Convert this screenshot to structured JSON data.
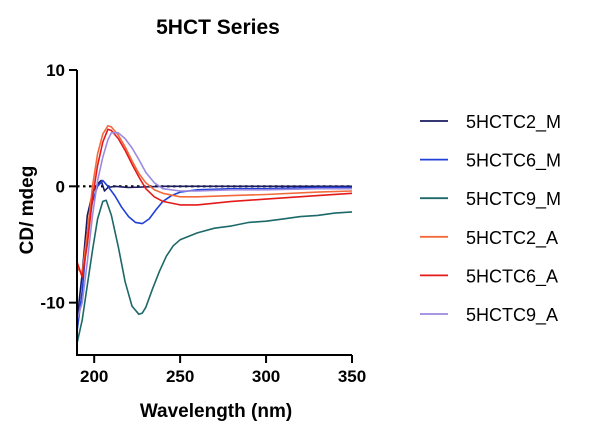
{
  "chart_data": {
    "type": "line",
    "title": "5HCT Series",
    "xlabel": "Wavelength (nm)",
    "ylabel": "CD/ mdeg",
    "xlim": [
      190,
      350
    ],
    "ylim": [
      -14.5,
      10
    ],
    "xticks": [
      200,
      250,
      300,
      350
    ],
    "yticks": [
      10,
      0,
      -10
    ],
    "zero_line": "dotted",
    "grid": false,
    "legend_position": "right",
    "series": [
      {
        "name": "5HCTC2_M",
        "color": "#1a1a5e",
        "x": [
          190,
          193,
          196,
          199,
          202,
          204,
          206,
          208,
          212,
          220,
          240,
          270,
          300,
          330,
          350
        ],
        "y": [
          -11.5,
          -7.5,
          -2.5,
          -0.6,
          0.2,
          0.5,
          -0.4,
          -0.1,
          0.0,
          -0.1,
          0.0,
          0.0,
          0.0,
          0.0,
          0.0
        ]
      },
      {
        "name": "5HCTC6_M",
        "color": "#2040d8",
        "x": [
          190,
          193,
          196,
          199,
          202,
          205,
          208,
          212,
          216,
          220,
          224,
          228,
          232,
          236,
          240,
          245,
          250,
          260,
          280,
          300,
          330,
          350
        ],
        "y": [
          -12.5,
          -9,
          -4,
          -1.3,
          0.0,
          0.5,
          0.0,
          -0.8,
          -1.8,
          -2.6,
          -3.1,
          -3.2,
          -2.8,
          -2.0,
          -1.3,
          -0.8,
          -0.5,
          -0.3,
          -0.2,
          -0.2,
          -0.1,
          -0.1
        ]
      },
      {
        "name": "5HCTC9_M",
        "color": "#1d6868",
        "x": [
          190,
          193,
          196,
          199,
          202,
          205,
          207,
          210,
          214,
          218,
          222,
          226,
          228,
          230,
          234,
          238,
          242,
          246,
          250,
          260,
          270,
          280,
          290,
          300,
          310,
          320,
          330,
          340,
          350
        ],
        "y": [
          -13.5,
          -11.5,
          -8.5,
          -5.5,
          -2.8,
          -1.3,
          -1.2,
          -2.5,
          -5.2,
          -8.2,
          -10.3,
          -11.0,
          -10.9,
          -10.4,
          -8.8,
          -7.3,
          -6.0,
          -5.1,
          -4.6,
          -4.0,
          -3.6,
          -3.4,
          -3.1,
          -3.0,
          -2.8,
          -2.6,
          -2.5,
          -2.3,
          -2.2
        ]
      },
      {
        "name": "5HCTC2_A",
        "color": "#f26a3c",
        "x": [
          190,
          193,
          196,
          199,
          202,
          205,
          208,
          210,
          214,
          218,
          222,
          226,
          230,
          235,
          240,
          250,
          260,
          280,
          300,
          330,
          350
        ],
        "y": [
          -7,
          -7.5,
          -4,
          0,
          2.8,
          4.5,
          5.2,
          5.1,
          4.4,
          3.4,
          2.2,
          1.1,
          0.3,
          -0.3,
          -0.6,
          -0.9,
          -0.9,
          -0.8,
          -0.7,
          -0.5,
          -0.4
        ]
      },
      {
        "name": "5HCTC6_A",
        "color": "#e41a1a",
        "x": [
          190,
          193,
          196,
          199,
          202,
          205,
          208,
          210,
          214,
          218,
          222,
          226,
          230,
          235,
          240,
          250,
          260,
          280,
          300,
          330,
          350
        ],
        "y": [
          -6.5,
          -7.8,
          -5,
          -1,
          1.8,
          3.8,
          4.9,
          4.8,
          4.1,
          3.1,
          1.9,
          0.8,
          -0.2,
          -0.9,
          -1.3,
          -1.6,
          -1.6,
          -1.3,
          -1.1,
          -0.8,
          -0.6
        ]
      },
      {
        "name": "5HCTC9_A",
        "color": "#9b8ae0",
        "x": [
          190,
          193,
          196,
          199,
          202,
          205,
          208,
          210,
          214,
          218,
          222,
          226,
          230,
          235,
          240,
          250,
          260,
          280,
          300,
          330,
          350
        ],
        "y": [
          -11.5,
          -10,
          -6.5,
          -2.5,
          0.5,
          2.5,
          4.0,
          4.6,
          4.6,
          4.1,
          3.3,
          2.3,
          1.2,
          0.3,
          -0.2,
          -0.4,
          -0.4,
          -0.3,
          -0.3,
          -0.2,
          -0.2
        ]
      }
    ]
  }
}
